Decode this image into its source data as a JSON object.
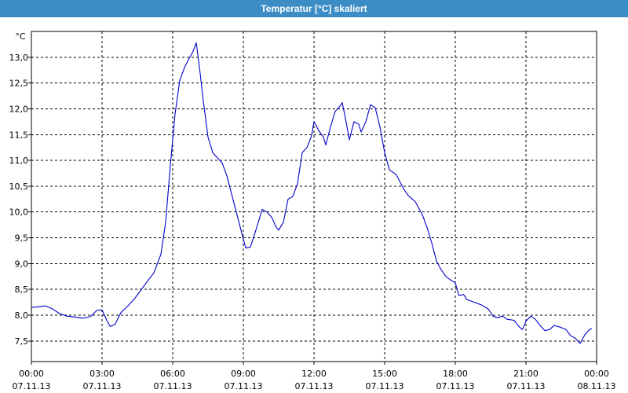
{
  "window": {
    "title": "Temperatur [°C] skaliert"
  },
  "colors": {
    "title_bar": "#3c8dc5",
    "line": "#0000cc",
    "grid": "#000000",
    "axis": "#000000"
  },
  "chart_data": {
    "type": "line",
    "title": "Temperatur [°C] skaliert",
    "ylabel": "°C",
    "xlabel": "",
    "ylim": [
      7.1,
      13.5
    ],
    "xlim": [
      0,
      24
    ],
    "grid": true,
    "yticks": [
      {
        "value": 7.5,
        "label": "7,5"
      },
      {
        "value": 8.0,
        "label": "8,0"
      },
      {
        "value": 8.5,
        "label": "8,5"
      },
      {
        "value": 9.0,
        "label": "9,0"
      },
      {
        "value": 9.5,
        "label": "9,5"
      },
      {
        "value": 10.0,
        "label": "10,0"
      },
      {
        "value": 10.5,
        "label": "10,5"
      },
      {
        "value": 11.0,
        "label": "11,0"
      },
      {
        "value": 11.5,
        "label": "11,5"
      },
      {
        "value": 12.0,
        "label": "12,0"
      },
      {
        "value": 12.5,
        "label": "12,5"
      },
      {
        "value": 13.0,
        "label": "13,0"
      }
    ],
    "xticks": [
      {
        "value": 0,
        "time": "00:00",
        "date": "07.11.13"
      },
      {
        "value": 3,
        "time": "03:00",
        "date": "07.11.13"
      },
      {
        "value": 6,
        "time": "06:00",
        "date": "07.11.13"
      },
      {
        "value": 9,
        "time": "09:00",
        "date": "07.11.13"
      },
      {
        "value": 12,
        "time": "12:00",
        "date": "07.11.13"
      },
      {
        "value": 15,
        "time": "15:00",
        "date": "07.11.13"
      },
      {
        "value": 18,
        "time": "18:00",
        "date": "07.11.13"
      },
      {
        "value": 21,
        "time": "21:00",
        "date": "07.11.13"
      },
      {
        "value": 24,
        "time": "00:00",
        "date": "08.11.13"
      }
    ],
    "series": [
      {
        "points": [
          [
            0.0,
            8.15
          ],
          [
            0.3,
            8.16
          ],
          [
            0.6,
            8.18
          ],
          [
            0.9,
            8.12
          ],
          [
            1.2,
            8.03
          ],
          [
            1.5,
            7.98
          ],
          [
            1.9,
            7.96
          ],
          [
            2.2,
            7.94
          ],
          [
            2.5,
            7.97
          ],
          [
            2.8,
            8.1
          ],
          [
            3.0,
            8.1
          ],
          [
            3.2,
            7.9
          ],
          [
            3.35,
            7.78
          ],
          [
            3.55,
            7.82
          ],
          [
            3.8,
            8.05
          ],
          [
            4.1,
            8.18
          ],
          [
            4.4,
            8.33
          ],
          [
            4.8,
            8.58
          ],
          [
            5.2,
            8.82
          ],
          [
            5.5,
            9.18
          ],
          [
            5.7,
            9.8
          ],
          [
            5.9,
            10.9
          ],
          [
            6.1,
            11.9
          ],
          [
            6.3,
            12.55
          ],
          [
            6.5,
            12.8
          ],
          [
            6.7,
            12.98
          ],
          [
            6.85,
            13.1
          ],
          [
            7.0,
            13.28
          ],
          [
            7.15,
            12.75
          ],
          [
            7.3,
            12.15
          ],
          [
            7.5,
            11.45
          ],
          [
            7.7,
            11.15
          ],
          [
            7.9,
            11.05
          ],
          [
            8.1,
            10.95
          ],
          [
            8.3,
            10.7
          ],
          [
            8.5,
            10.35
          ],
          [
            8.7,
            10.0
          ],
          [
            8.9,
            9.65
          ],
          [
            9.1,
            9.3
          ],
          [
            9.3,
            9.32
          ],
          [
            9.5,
            9.6
          ],
          [
            9.8,
            10.05
          ],
          [
            10.0,
            10.0
          ],
          [
            10.2,
            9.9
          ],
          [
            10.4,
            9.7
          ],
          [
            10.5,
            9.65
          ],
          [
            10.7,
            9.8
          ],
          [
            10.9,
            10.25
          ],
          [
            11.1,
            10.3
          ],
          [
            11.3,
            10.55
          ],
          [
            11.5,
            11.15
          ],
          [
            11.7,
            11.25
          ],
          [
            11.9,
            11.48
          ],
          [
            12.0,
            11.75
          ],
          [
            12.2,
            11.58
          ],
          [
            12.4,
            11.45
          ],
          [
            12.5,
            11.3
          ],
          [
            12.7,
            11.65
          ],
          [
            12.9,
            11.95
          ],
          [
            13.1,
            12.05
          ],
          [
            13.2,
            12.12
          ],
          [
            13.35,
            11.78
          ],
          [
            13.5,
            11.4
          ],
          [
            13.7,
            11.75
          ],
          [
            13.9,
            11.7
          ],
          [
            14.0,
            11.55
          ],
          [
            14.2,
            11.75
          ],
          [
            14.4,
            12.08
          ],
          [
            14.6,
            12.02
          ],
          [
            14.8,
            11.65
          ],
          [
            15.0,
            11.15
          ],
          [
            15.2,
            10.82
          ],
          [
            15.5,
            10.72
          ],
          [
            15.8,
            10.45
          ],
          [
            16.0,
            10.32
          ],
          [
            16.3,
            10.2
          ],
          [
            16.6,
            9.95
          ],
          [
            16.8,
            9.7
          ],
          [
            17.0,
            9.4
          ],
          [
            17.2,
            9.05
          ],
          [
            17.4,
            8.88
          ],
          [
            17.6,
            8.75
          ],
          [
            17.8,
            8.68
          ],
          [
            18.0,
            8.63
          ],
          [
            18.15,
            8.38
          ],
          [
            18.35,
            8.4
          ],
          [
            18.5,
            8.3
          ],
          [
            18.8,
            8.25
          ],
          [
            19.1,
            8.2
          ],
          [
            19.4,
            8.12
          ],
          [
            19.6,
            7.98
          ],
          [
            19.8,
            7.95
          ],
          [
            20.0,
            7.98
          ],
          [
            20.2,
            7.92
          ],
          [
            20.5,
            7.9
          ],
          [
            20.7,
            7.78
          ],
          [
            20.85,
            7.72
          ],
          [
            21.0,
            7.88
          ],
          [
            21.2,
            7.98
          ],
          [
            21.4,
            7.92
          ],
          [
            21.6,
            7.8
          ],
          [
            21.8,
            7.7
          ],
          [
            22.0,
            7.72
          ],
          [
            22.2,
            7.8
          ],
          [
            22.5,
            7.76
          ],
          [
            22.7,
            7.72
          ],
          [
            22.9,
            7.6
          ],
          [
            23.1,
            7.55
          ],
          [
            23.3,
            7.45
          ],
          [
            23.5,
            7.62
          ],
          [
            23.7,
            7.72
          ],
          [
            23.8,
            7.74
          ]
        ]
      }
    ]
  }
}
